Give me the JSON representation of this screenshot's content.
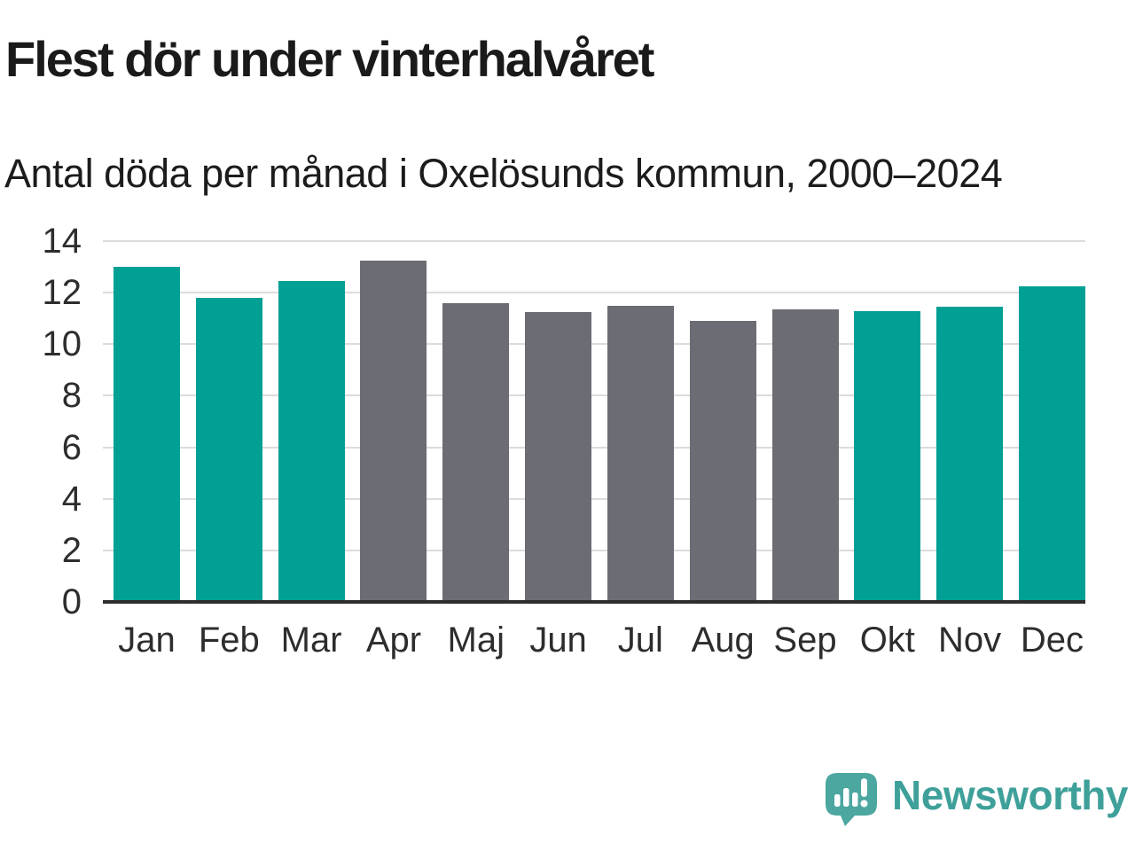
{
  "chart": {
    "title": "Flest dör under vinterhalvåret",
    "subtitle": "Antal döda per månad i Oxelösunds kommun, 2000–2024"
  },
  "chart_data": {
    "type": "bar",
    "title": "Flest dör under vinterhalvåret",
    "subtitle": "Antal döda per månad i Oxelösunds kommun, 2000–2024",
    "categories": [
      "Jan",
      "Feb",
      "Mar",
      "Apr",
      "Maj",
      "Jun",
      "Jul",
      "Aug",
      "Sep",
      "Okt",
      "Nov",
      "Dec"
    ],
    "values": [
      13.0,
      11.8,
      12.45,
      13.25,
      11.6,
      11.25,
      11.5,
      10.9,
      11.35,
      11.3,
      11.45,
      12.25
    ],
    "bar_colors": [
      "#00A094",
      "#00A094",
      "#00A094",
      "#6C6C74",
      "#6C6C74",
      "#6C6C74",
      "#6C6C74",
      "#6C6C74",
      "#6C6C74",
      "#00A094",
      "#00A094",
      "#00A094"
    ],
    "xlabel": "",
    "ylabel": "",
    "ylim": [
      0,
      14
    ],
    "yticks": [
      0,
      2,
      4,
      6,
      8,
      10,
      12,
      14
    ],
    "grid": true,
    "legend": false
  },
  "colors": {
    "highlight_teal": "#00A094",
    "muted_gray": "#6C6C74",
    "gridline": "#DCDCDC",
    "axis_line": "#2E2E2E",
    "title_text": "#1A1A1A",
    "tick_text": "#2D2D2D",
    "logo_teal": "#3FA09A",
    "logo_bubble": "#4BA7A0"
  },
  "footer": {
    "brand": "Newsworthy"
  }
}
